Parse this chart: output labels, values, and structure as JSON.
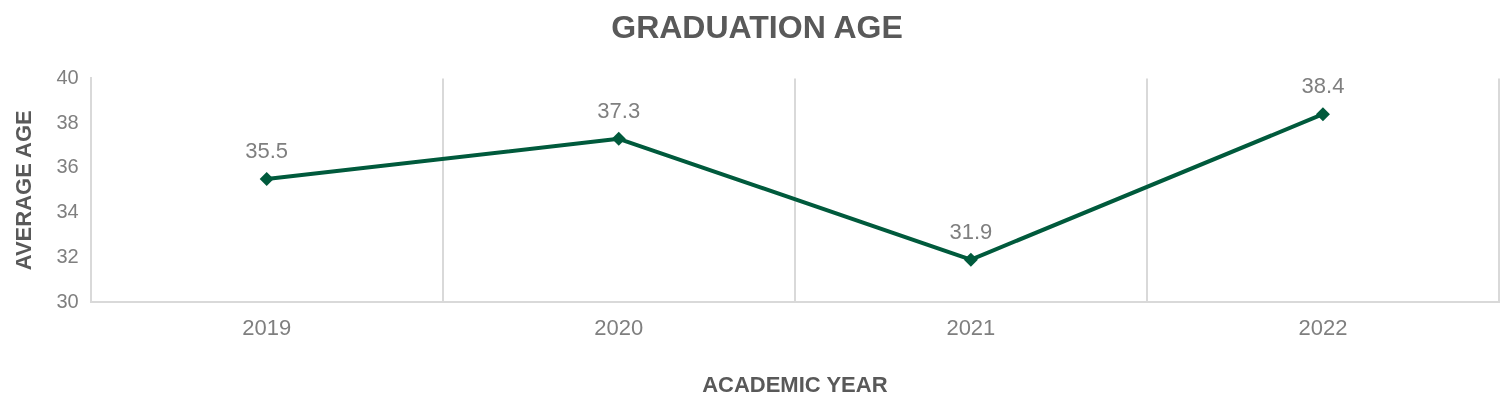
{
  "chart_data": {
    "type": "line",
    "title": "GRADUATION AGE",
    "xlabel": "ACADEMIC YEAR",
    "ylabel": "AVERAGE AGE",
    "categories": [
      "2019",
      "2020",
      "2021",
      "2022"
    ],
    "series": [
      {
        "color": "#005a3c",
        "values": [
          35.5,
          37.3,
          31.9,
          38.4
        ]
      }
    ],
    "ylim": [
      30,
      40
    ],
    "yticks": [
      30,
      32,
      34,
      36,
      38,
      40
    ],
    "grid": "x",
    "legend": false,
    "marker": "diamond",
    "line_style": "solid",
    "data_labels": true
  }
}
